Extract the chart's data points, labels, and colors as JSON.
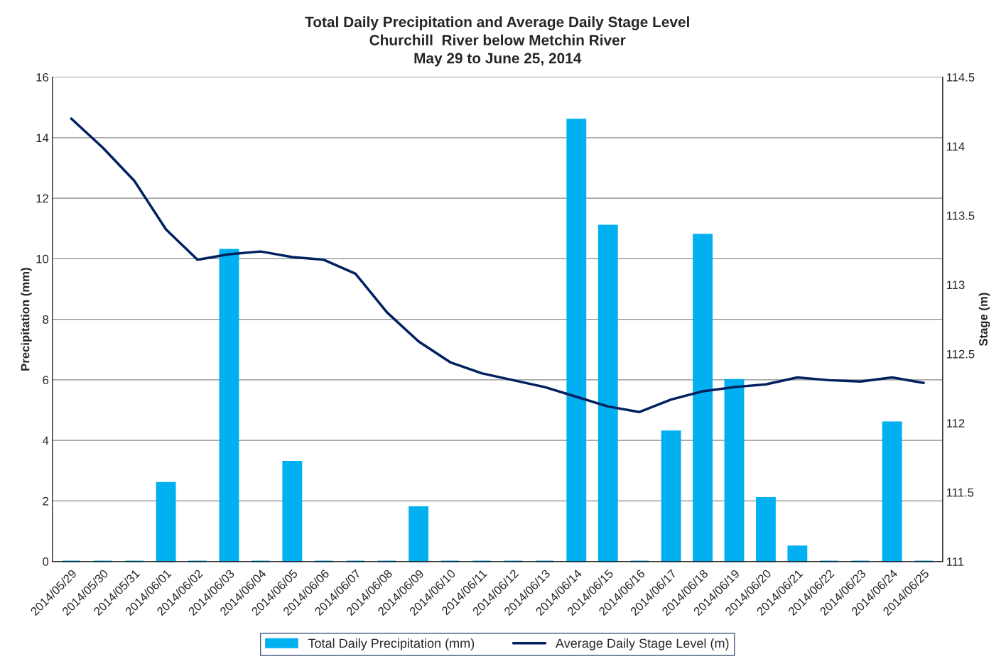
{
  "chart_data": {
    "type": "bar",
    "title": "Total Daily Precipitation and Average Daily Stage Level\nChurchill  River below Metchin River\nMay 29 to June 25, 2014",
    "xlabel": null,
    "ylabel": "Precipitation (mm)",
    "y2label": "Stage (m)",
    "categories": [
      "2014/05/29",
      "2014/05/30",
      "2014/05/31",
      "2014/06/01",
      "2014/06/02",
      "2014/06/03",
      "2014/06/04",
      "2014/06/05",
      "2014/06/06",
      "2014/06/07",
      "2014/06/08",
      "2014/06/09",
      "2014/06/10",
      "2014/06/11",
      "2014/06/12",
      "2014/06/13",
      "2014/06/14",
      "2014/06/15",
      "2014/06/16",
      "2014/06/17",
      "2014/06/18",
      "2014/06/19",
      "2014/06/20",
      "2014/06/21",
      "2014/06/22",
      "2014/06/23",
      "2014/06/24",
      "2014/06/25"
    ],
    "series": [
      {
        "name": "Total Daily Precipitation (mm)",
        "color": "#00b0f0",
        "values": [
          0,
          0,
          0,
          2.6,
          0,
          10.3,
          0,
          3.3,
          0,
          0,
          0,
          1.8,
          0,
          0,
          0,
          0,
          14.6,
          11.1,
          0,
          4.3,
          10.8,
          6.0,
          2.1,
          0.5,
          0,
          0,
          4.6,
          0
        ]
      },
      {
        "name": "Average Daily Stage Level (m)",
        "type": "line",
        "axis": "y2",
        "color": "#002060",
        "values": [
          114.2,
          113.99,
          113.75,
          113.4,
          113.18,
          113.22,
          113.24,
          113.2,
          113.18,
          113.08,
          112.8,
          112.59,
          112.44,
          112.36,
          112.31,
          112.26,
          112.19,
          112.12,
          112.08,
          112.17,
          112.23,
          112.26,
          112.28,
          112.33,
          112.31,
          112.3,
          112.33,
          112.29
        ]
      }
    ],
    "ylim": [
      0,
      16
    ],
    "yticks": [
      0,
      2,
      4,
      6,
      8,
      10,
      12,
      14,
      16
    ],
    "y2lim": [
      111,
      114.5
    ],
    "y2ticks": [
      111,
      111.5,
      112,
      112.5,
      113,
      113.5,
      114,
      114.5
    ],
    "grid": "y",
    "legend": "bottom",
    "marker": "none",
    "line_style": "solid"
  }
}
